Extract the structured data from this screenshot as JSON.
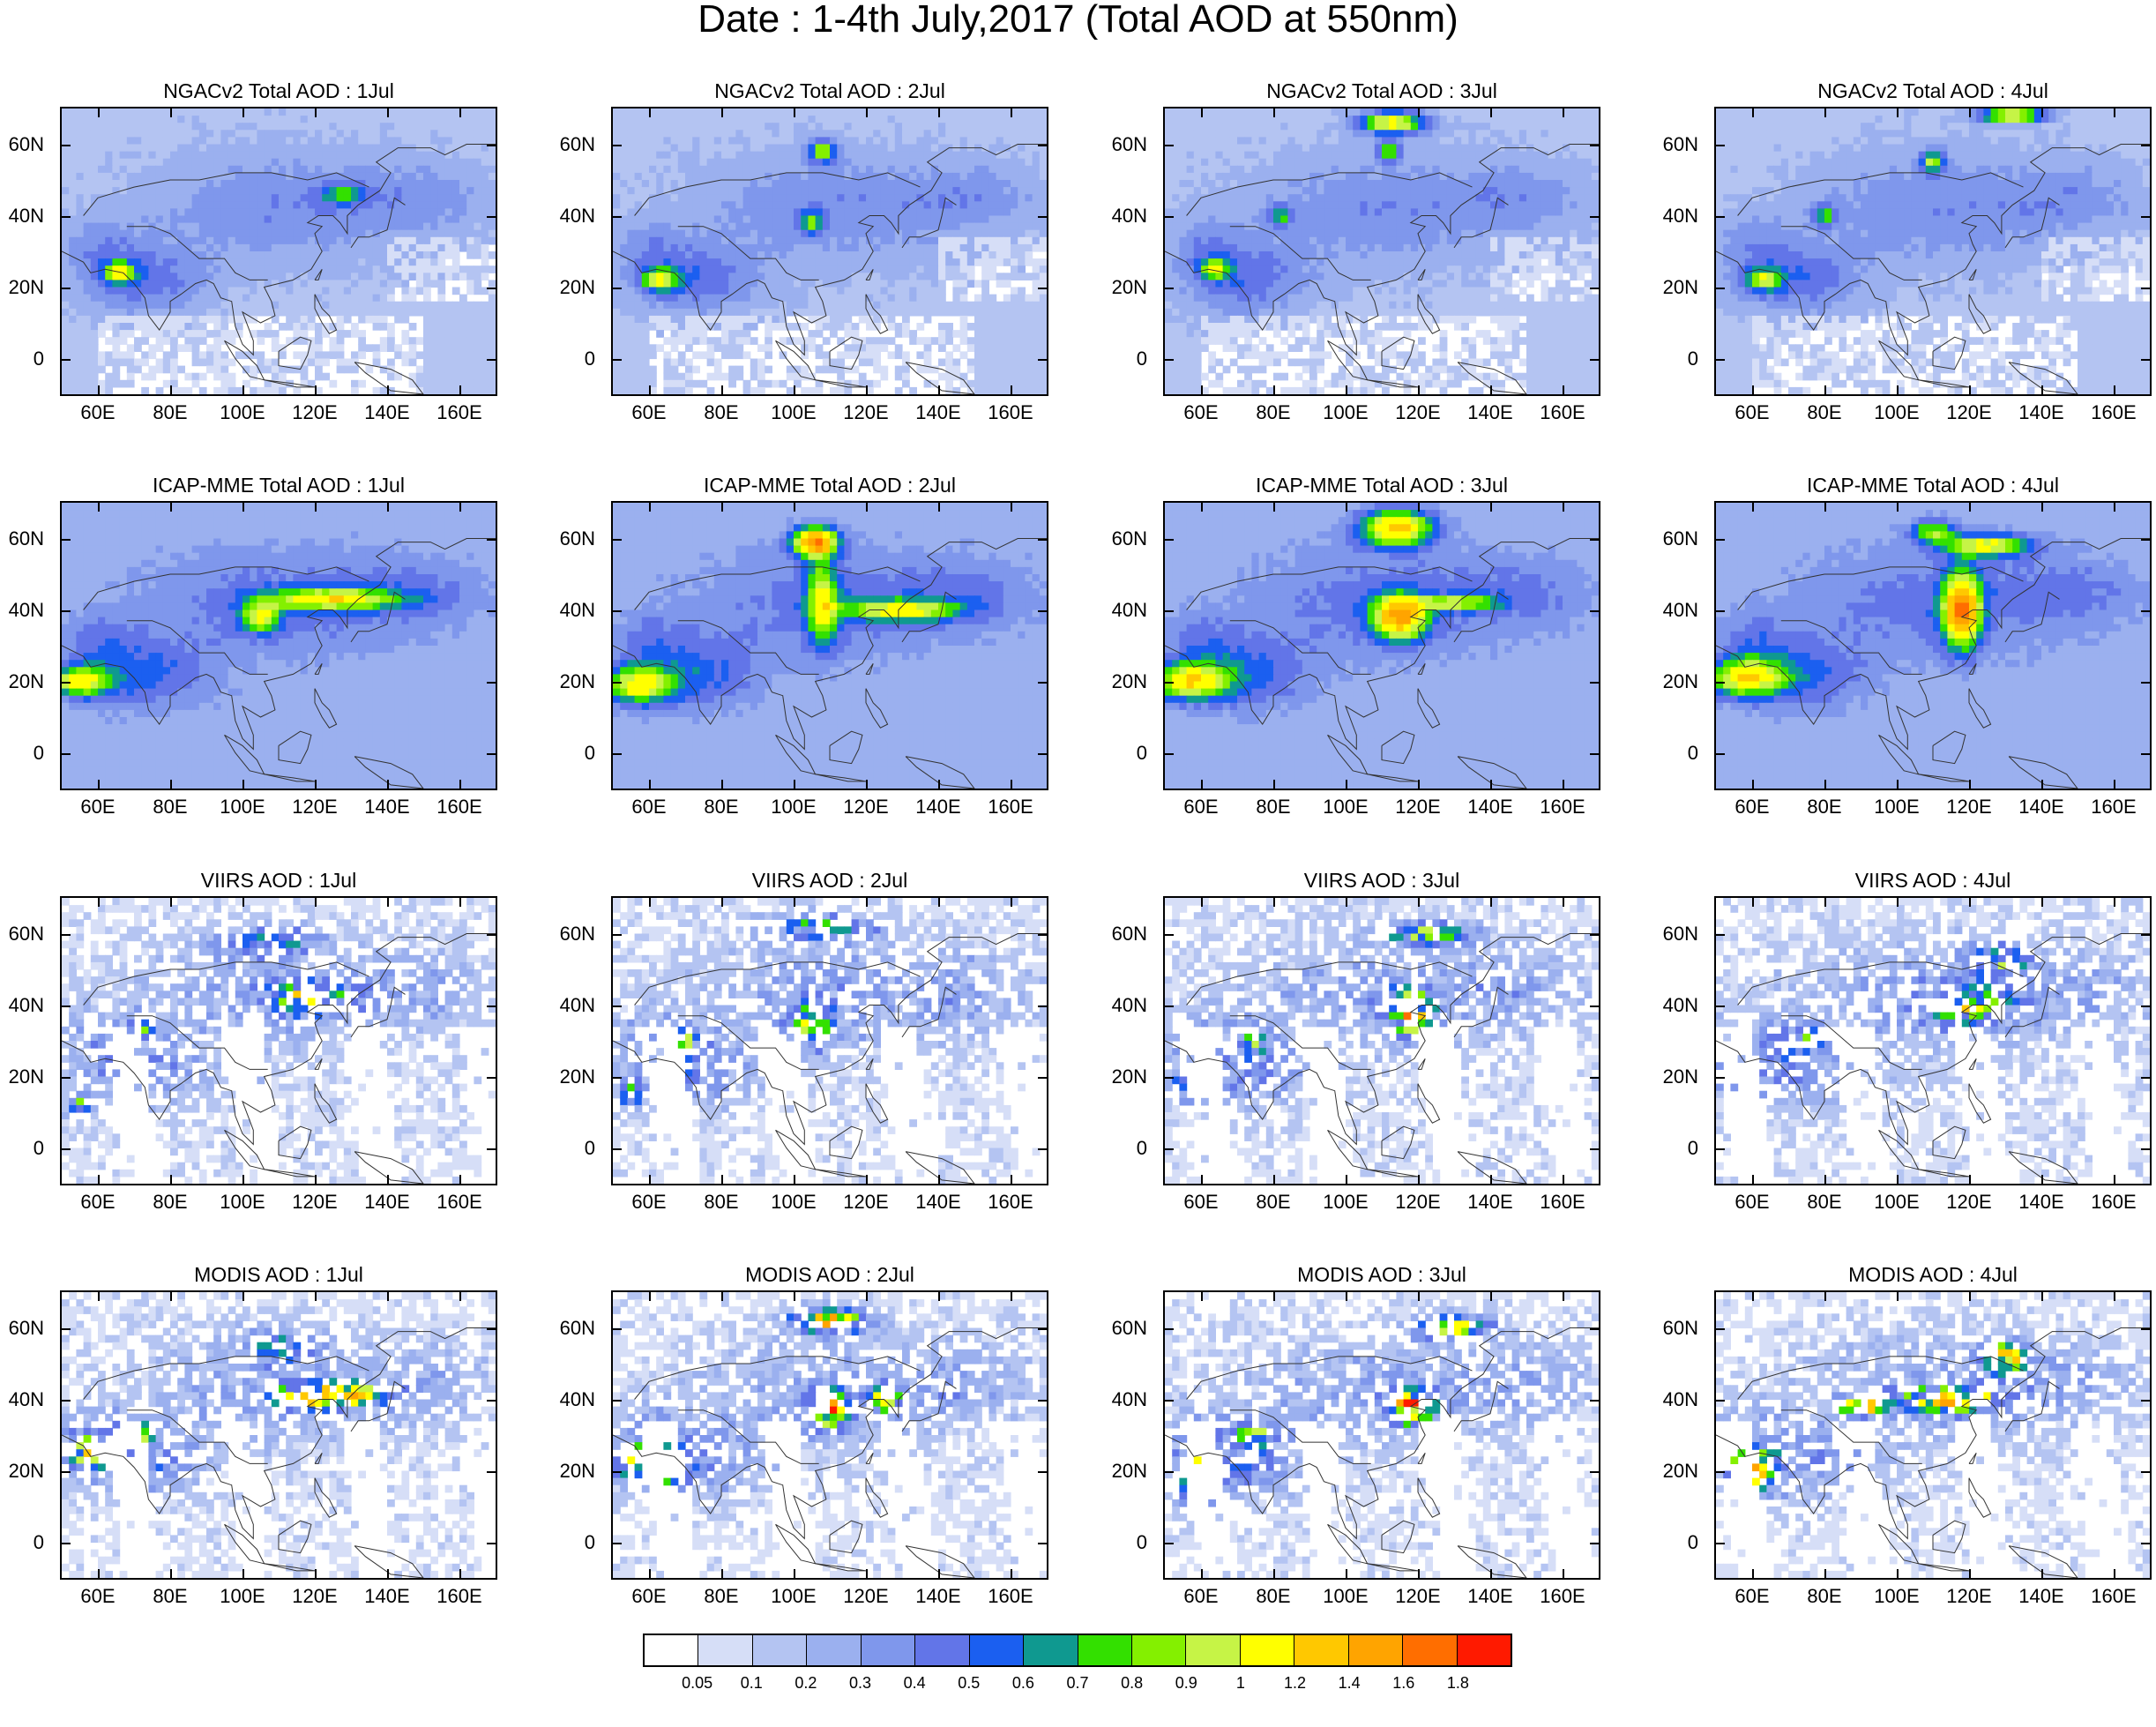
{
  "title": "Date : 1-4th July,2017 (Total AOD at 550nm)",
  "chart_data": {
    "type": "heatmap",
    "x_ticks": [
      "60E",
      "80E",
      "100E",
      "120E",
      "140E",
      "160E"
    ],
    "y_ticks": [
      "60N",
      "40N",
      "20N",
      "0"
    ],
    "xlim": [
      50,
      170
    ],
    "ylim": [
      -10,
      70
    ],
    "colorbar": {
      "levels": [
        "0.05",
        "0.1",
        "0.2",
        "0.3",
        "0.4",
        "0.5",
        "0.6",
        "0.7",
        "0.8",
        "0.9",
        "1",
        "1.2",
        "1.4",
        "1.6",
        "1.8"
      ],
      "colors": [
        "#ffffff",
        "#d6def7",
        "#b4c4f2",
        "#9bb0ef",
        "#7f97ec",
        "#6275e8",
        "#1b5ff0",
        "#0f9990",
        "#33e000",
        "#84f000",
        "#c6f446",
        "#ffff00",
        "#ffc800",
        "#ffa400",
        "#ff6e00",
        "#ff1a00"
      ]
    },
    "panels": [
      {
        "title": "NGACv2 Total AOD : 1Jul",
        "row": 0,
        "col": 0
      },
      {
        "title": "NGACv2 Total AOD : 2Jul",
        "row": 0,
        "col": 1
      },
      {
        "title": "NGACv2 Total AOD : 3Jul",
        "row": 0,
        "col": 2
      },
      {
        "title": "NGACv2 Total AOD : 4Jul",
        "row": 0,
        "col": 3
      },
      {
        "title": "ICAP-MME Total AOD : 1Jul",
        "row": 1,
        "col": 0
      },
      {
        "title": "ICAP-MME Total AOD : 2Jul",
        "row": 1,
        "col": 1
      },
      {
        "title": "ICAP-MME Total AOD : 3Jul",
        "row": 1,
        "col": 2
      },
      {
        "title": "ICAP-MME Total AOD : 4Jul",
        "row": 1,
        "col": 3
      },
      {
        "title": "VIIRS AOD : 1Jul",
        "row": 2,
        "col": 0
      },
      {
        "title": "VIIRS AOD : 2Jul",
        "row": 2,
        "col": 1
      },
      {
        "title": "VIIRS AOD : 3Jul",
        "row": 2,
        "col": 2
      },
      {
        "title": "VIIRS AOD : 4Jul",
        "row": 2,
        "col": 3
      },
      {
        "title": "MODIS AOD : 1Jul",
        "row": 3,
        "col": 0
      },
      {
        "title": "MODIS AOD : 2Jul",
        "row": 3,
        "col": 1
      },
      {
        "title": "MODIS AOD : 3Jul",
        "row": 3,
        "col": 2
      },
      {
        "title": "MODIS AOD : 4Jul",
        "row": 3,
        "col": 3
      }
    ]
  }
}
